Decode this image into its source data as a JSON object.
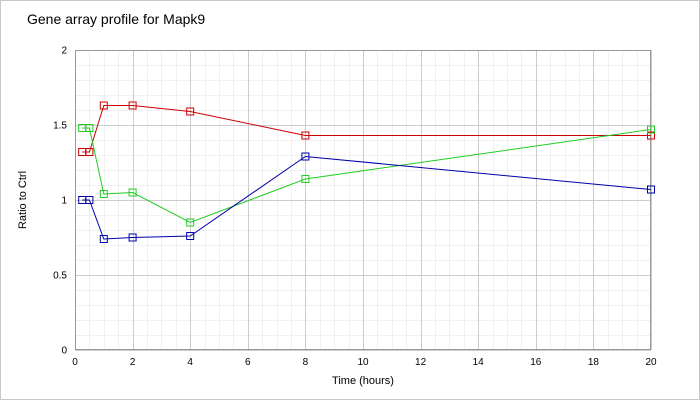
{
  "chart_data": {
    "type": "line",
    "title": "Gene array profile for Mapk9",
    "xlabel": "Time (hours)",
    "ylabel": "Ratio to Ctrl",
    "xlim": [
      0,
      20
    ],
    "ylim": [
      0,
      2
    ],
    "x_ticks": [
      "0",
      "2",
      "4",
      "6",
      "8",
      "10",
      "12",
      "14",
      "16",
      "18",
      "20"
    ],
    "y_ticks": [
      "0",
      "0.5",
      "1",
      "1.5",
      "2"
    ],
    "grid": true,
    "legend": "none",
    "series": [
      {
        "color": "#cc0000",
        "marker": "square",
        "points": [
          [
            0.25,
            1.32
          ],
          [
            0.5,
            1.32
          ],
          [
            1,
            1.63
          ],
          [
            2,
            1.63
          ],
          [
            4,
            1.59
          ],
          [
            8,
            1.43
          ],
          [
            20,
            1.43
          ]
        ]
      },
      {
        "color": "#22cc22",
        "marker": "square",
        "points": [
          [
            0.25,
            1.48
          ],
          [
            0.5,
            1.48
          ],
          [
            1,
            1.04
          ],
          [
            2,
            1.05
          ],
          [
            4,
            0.85
          ],
          [
            8,
            1.14
          ],
          [
            20,
            1.47
          ]
        ]
      },
      {
        "color": "#0000aa",
        "marker": "square",
        "points": [
          [
            0.25,
            1.0
          ],
          [
            0.5,
            1.0
          ],
          [
            1,
            0.74
          ],
          [
            2,
            0.75
          ],
          [
            4,
            0.76
          ],
          [
            8,
            1.29
          ],
          [
            20,
            1.07
          ]
        ]
      }
    ]
  }
}
